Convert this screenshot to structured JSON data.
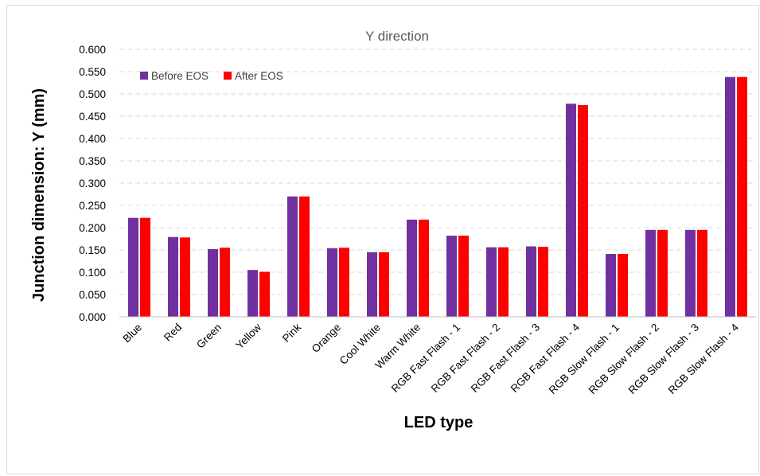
{
  "chart_data": {
    "type": "bar",
    "title": "Y direction",
    "xlabel": "LED type",
    "ylabel": "Junction dimension: Y (mm)",
    "ylim": [
      0,
      0.6
    ],
    "ytick_step": 0.05,
    "ytick_labels": [
      "0.000",
      "0.050",
      "0.100",
      "0.150",
      "0.200",
      "0.250",
      "0.300",
      "0.350",
      "0.400",
      "0.450",
      "0.500",
      "0.550",
      "0.600"
    ],
    "grid": true,
    "legend_position": "top-left",
    "categories": [
      "Blue",
      "Red",
      "Green",
      "Yellow",
      "Pink",
      "Orange",
      "Cool White",
      "Warm White",
      "RGB Fast Flash - 1",
      "RGB Fast Flash - 2",
      "RGB Fast Flash - 3",
      "RGB Fast Flash - 4",
      "RGB Slow Flash - 1",
      "RGB Slow Flash - 2",
      "RGB Slow Flash - 3",
      "RGB Slow Flash - 4"
    ],
    "series": [
      {
        "name": "Before EOS",
        "color": "#7030a0",
        "values": [
          0.222,
          0.179,
          0.152,
          0.105,
          0.27,
          0.154,
          0.145,
          0.218,
          0.182,
          0.156,
          0.158,
          0.478,
          0.141,
          0.195,
          0.195,
          0.538
        ]
      },
      {
        "name": "After EOS",
        "color": "#ff0000",
        "values": [
          0.222,
          0.178,
          0.155,
          0.101,
          0.27,
          0.155,
          0.145,
          0.218,
          0.182,
          0.156,
          0.157,
          0.475,
          0.141,
          0.195,
          0.195,
          0.538
        ]
      }
    ]
  }
}
